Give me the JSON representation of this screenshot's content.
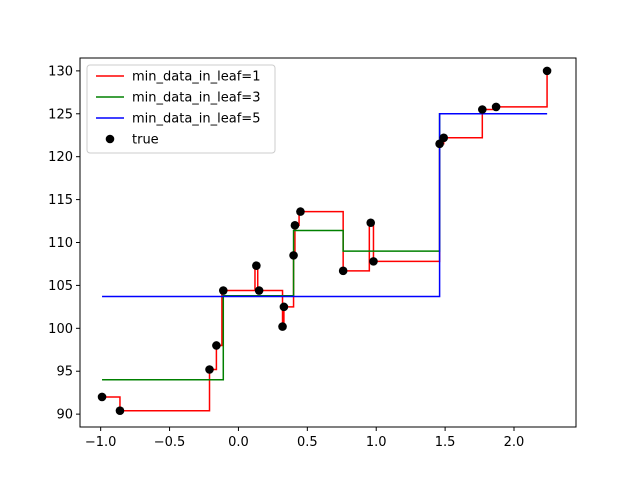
{
  "chart_data": {
    "type": "line",
    "title": "",
    "xlabel": "",
    "ylabel": "",
    "xlim": [
      -1.15,
      2.45
    ],
    "ylim": [
      88.5,
      131.5
    ],
    "xticks": [
      -1.0,
      -0.5,
      0.0,
      0.5,
      1.0,
      1.5,
      2.0
    ],
    "xtick_labels": [
      "−1.0",
      "−0.5",
      "0.0",
      "0.5",
      "1.0",
      "1.5",
      "2.0"
    ],
    "yticks": [
      90,
      95,
      100,
      105,
      110,
      115,
      120,
      125,
      130
    ],
    "ytick_labels": [
      "90",
      "95",
      "100",
      "105",
      "110",
      "115",
      "120",
      "125",
      "130"
    ],
    "grid": false,
    "legend_position": "upper-left",
    "series": [
      {
        "name": "min_data_in_leaf=1",
        "kind": "step",
        "color": "#ff0000",
        "points": [
          [
            -0.99,
            92.0
          ],
          [
            -0.86,
            92.0
          ],
          [
            -0.86,
            90.4
          ],
          [
            -0.21,
            90.4
          ],
          [
            -0.21,
            95.2
          ],
          [
            -0.16,
            95.2
          ],
          [
            -0.16,
            98.0
          ],
          [
            -0.12,
            98.0
          ],
          [
            -0.12,
            104.4
          ],
          [
            0.12,
            104.4
          ],
          [
            0.12,
            107.3
          ],
          [
            0.14,
            107.3
          ],
          [
            0.14,
            104.4
          ],
          [
            0.32,
            104.4
          ],
          [
            0.32,
            100.2
          ],
          [
            0.33,
            100.2
          ],
          [
            0.33,
            102.5
          ],
          [
            0.4,
            102.5
          ],
          [
            0.4,
            108.5
          ],
          [
            0.41,
            108.5
          ],
          [
            0.41,
            112.0
          ],
          [
            0.44,
            112.0
          ],
          [
            0.44,
            113.6
          ],
          [
            0.76,
            113.6
          ],
          [
            0.76,
            106.7
          ],
          [
            0.95,
            106.7
          ],
          [
            0.95,
            112.3
          ],
          [
            0.98,
            112.3
          ],
          [
            0.98,
            107.8
          ],
          [
            1.46,
            107.8
          ],
          [
            1.46,
            121.5
          ],
          [
            1.49,
            121.5
          ],
          [
            1.49,
            122.2
          ],
          [
            1.77,
            122.2
          ],
          [
            1.77,
            125.5
          ],
          [
            1.87,
            125.5
          ],
          [
            1.87,
            125.8
          ],
          [
            2.24,
            125.8
          ],
          [
            2.24,
            130.0
          ]
        ]
      },
      {
        "name": "min_data_in_leaf=3",
        "kind": "step",
        "color": "#008000",
        "points": [
          [
            -0.99,
            94.0
          ],
          [
            -0.11,
            94.0
          ],
          [
            -0.11,
            103.8
          ],
          [
            0.4,
            103.8
          ],
          [
            0.4,
            111.4
          ],
          [
            0.76,
            111.4
          ],
          [
            0.76,
            109.0
          ],
          [
            1.46,
            109.0
          ],
          [
            1.46,
            125.0
          ],
          [
            2.24,
            125.0
          ]
        ]
      },
      {
        "name": "min_data_in_leaf=5",
        "kind": "step",
        "color": "#0000ff",
        "points": [
          [
            -0.99,
            103.7
          ],
          [
            1.46,
            103.7
          ],
          [
            1.46,
            125.0
          ],
          [
            2.24,
            125.0
          ]
        ]
      },
      {
        "name": "true",
        "kind": "scatter",
        "color": "#000000",
        "points": [
          [
            -0.99,
            92.0
          ],
          [
            -0.86,
            90.4
          ],
          [
            -0.21,
            95.2
          ],
          [
            -0.16,
            98.0
          ],
          [
            -0.11,
            104.4
          ],
          [
            0.13,
            107.3
          ],
          [
            0.15,
            104.4
          ],
          [
            0.32,
            100.2
          ],
          [
            0.33,
            102.5
          ],
          [
            0.4,
            108.5
          ],
          [
            0.41,
            112.0
          ],
          [
            0.45,
            113.6
          ],
          [
            0.76,
            106.7
          ],
          [
            0.96,
            112.3
          ],
          [
            0.98,
            107.8
          ],
          [
            1.46,
            121.5
          ],
          [
            1.49,
            122.2
          ],
          [
            1.77,
            125.5
          ],
          [
            1.87,
            125.8
          ],
          [
            2.24,
            130.0
          ]
        ]
      }
    ]
  }
}
